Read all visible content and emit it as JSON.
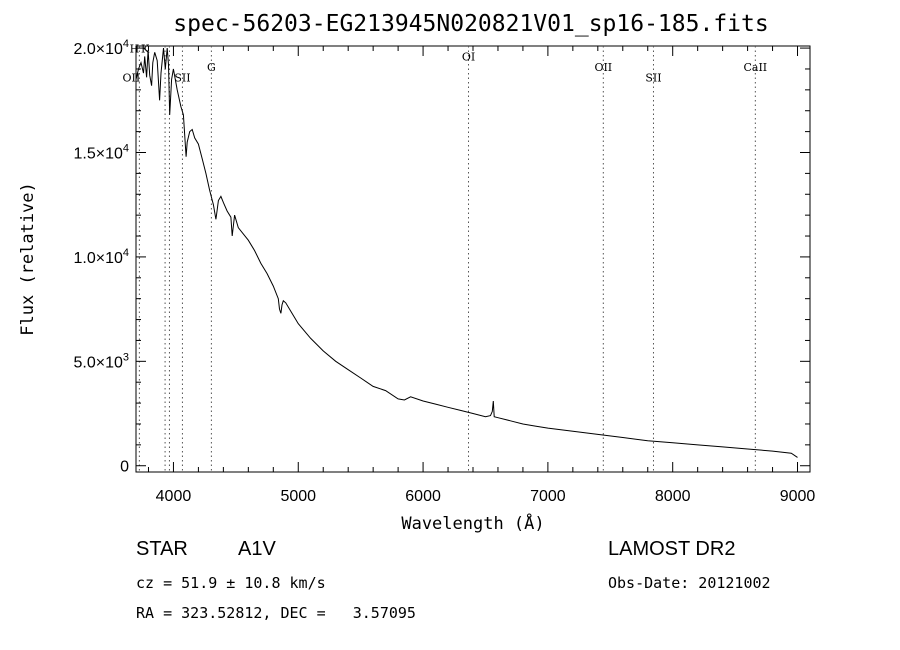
{
  "chart_data": {
    "type": "line",
    "title": "spec-56203-EG213945N020821V01_sp16-185.fits",
    "xlabel": "Wavelength (Å)",
    "ylabel": "Flux (relative)",
    "xlim": [
      3700,
      9100
    ],
    "ylim": [
      -300,
      20100
    ],
    "x_ticks": [
      {
        "value": 4000,
        "label": "4000"
      },
      {
        "value": 5000,
        "label": "5000"
      },
      {
        "value": 6000,
        "label": "6000"
      },
      {
        "value": 7000,
        "label": "7000"
      },
      {
        "value": 8000,
        "label": "8000"
      },
      {
        "value": 9000,
        "label": "9000"
      }
    ],
    "y_ticks": [
      {
        "value": 0,
        "mantissa": "0",
        "exponent": ""
      },
      {
        "value": 5000,
        "mantissa": "5.0×10",
        "exponent": "3"
      },
      {
        "value": 10000,
        "mantissa": "1.0×10",
        "exponent": "4"
      },
      {
        "value": 15000,
        "mantissa": "1.5×10",
        "exponent": "4"
      },
      {
        "value": 20000,
        "mantissa": "2.0×10",
        "exponent": "4"
      }
    ],
    "grid": false,
    "series": [
      {
        "x": [
          3700,
          3720,
          3740,
          3760,
          3770,
          3785,
          3797,
          3810,
          3825,
          3835,
          3850,
          3870,
          3889,
          3900,
          3920,
          3935,
          3950,
          3960,
          3970,
          3985,
          4000,
          4030,
          4060,
          4080,
          4101,
          4110,
          4130,
          4150,
          4170,
          4200,
          4230,
          4260,
          4290,
          4320,
          4340,
          4345,
          4360,
          4380,
          4400,
          4430,
          4460,
          4471,
          4490,
          4520,
          4560,
          4600,
          4650,
          4700,
          4750,
          4800,
          4840,
          4850,
          4861,
          4870,
          4880,
          4900,
          4950,
          5000,
          5100,
          5200,
          5300,
          5400,
          5500,
          5600,
          5700,
          5800,
          5850,
          5900,
          6000,
          6100,
          6200,
          6300,
          6400,
          6500,
          6540,
          6555,
          6563,
          6570,
          6600,
          6700,
          6800,
          6900,
          7000,
          7200,
          7400,
          7600,
          7800,
          8000,
          8200,
          8400,
          8600,
          8800,
          8950,
          9000
        ],
        "values": [
          18500,
          19000,
          19300,
          18800,
          19600,
          18600,
          19900,
          18700,
          18200,
          19300,
          19800,
          19400,
          17500,
          18800,
          20000,
          19000,
          20000,
          19200,
          16800,
          18500,
          19000,
          18000,
          17200,
          16800,
          14800,
          15500,
          16000,
          16100,
          15700,
          15400,
          14700,
          14000,
          13200,
          12500,
          11800,
          12000,
          12700,
          12900,
          12600,
          12200,
          11900,
          11000,
          12000,
          11400,
          11100,
          10800,
          10300,
          9700,
          9200,
          8600,
          8000,
          7500,
          7300,
          7700,
          7900,
          7800,
          7300,
          6800,
          6100,
          5500,
          5000,
          4600,
          4200,
          3800,
          3600,
          3200,
          3150,
          3300,
          3100,
          2950,
          2800,
          2650,
          2500,
          2350,
          2400,
          2600,
          3100,
          2350,
          2300,
          2150,
          2000,
          1900,
          1800,
          1650,
          1500,
          1350,
          1200,
          1100,
          1000,
          900,
          800,
          700,
          600,
          400
        ]
      }
    ],
    "lines": [
      {
        "label": "OII",
        "x": 3727,
        "label_y": 18400,
        "label_dx": -8
      },
      {
        "label": "H",
        "x": 3968,
        "label_y": 19800,
        "label_dx": -35
      },
      {
        "label": "K",
        "x": 3933,
        "label_y": 19800,
        "label_dx": -20
      },
      {
        "label": "SII",
        "x": 4072,
        "label_y": 18400,
        "label_dx": 0
      },
      {
        "label": "G",
        "x": 4304,
        "label_y": 18900,
        "label_dx": 0
      },
      {
        "label": "OI",
        "x": 6364,
        "label_y": 19400,
        "label_dx": 0
      },
      {
        "label": "OII",
        "x": 7444,
        "label_y": 18900,
        "label_dx": 0
      },
      {
        "label": "SII",
        "x": 7846,
        "label_y": 18400,
        "label_dx": 0
      },
      {
        "label": "CaII",
        "x": 8662,
        "label_y": 18900,
        "label_dx": 0
      }
    ]
  },
  "info": {
    "object_type": "STAR",
    "object_class": "A1V",
    "survey": "LAMOST DR2",
    "redshift": "cz = 51.9 ± 10.8 km/s",
    "obs_date": "Obs-Date: 20121002",
    "coordinates": "RA = 323.52812, DEC =   3.57095"
  }
}
